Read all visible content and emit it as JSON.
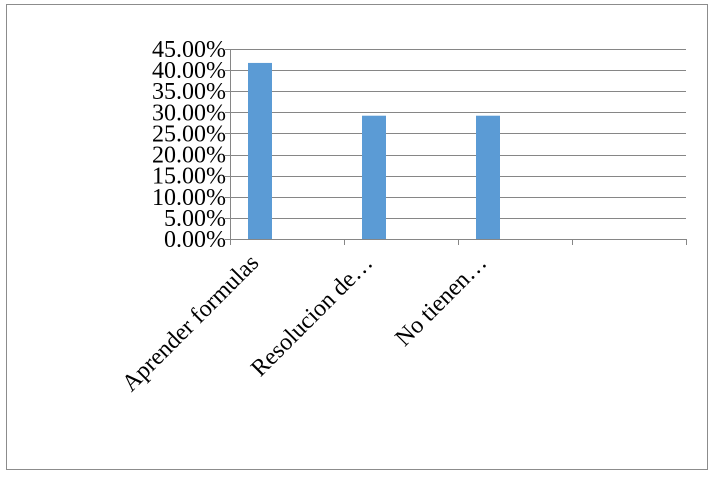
{
  "chart_data": {
    "type": "bar",
    "categories": [
      "Aprender formulas",
      "Resolucion de…",
      "No tienen…",
      ""
    ],
    "values": [
      0.417,
      0.292,
      0.292,
      null
    ],
    "ylim": [
      0,
      0.45
    ],
    "yticks": [
      0,
      0.05,
      0.1,
      0.15,
      0.2,
      0.25,
      0.3,
      0.35,
      0.4,
      0.45
    ],
    "ytick_labels": [
      "0.00%",
      "5.00%",
      "10.00%",
      "15.00%",
      "20.00%",
      "25.00%",
      "30.00%",
      "35.00%",
      "40.00%",
      "45.00%"
    ],
    "grid": true,
    "bar_color": "#5b9bd5",
    "gridline_color": "#868686"
  }
}
